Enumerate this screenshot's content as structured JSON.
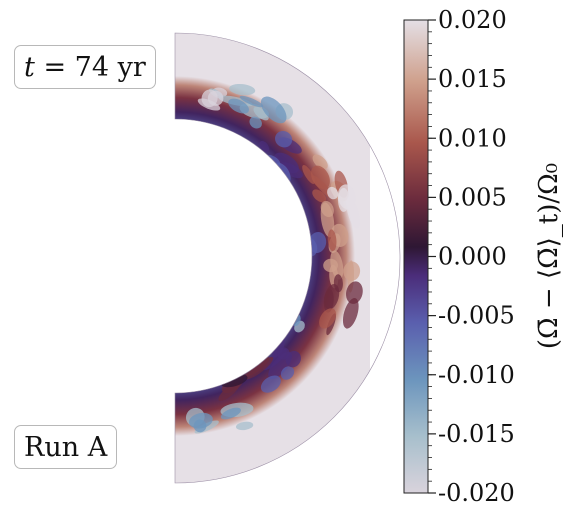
{
  "labels": {
    "time_prefix": "t",
    "time_text": " = 74 yr",
    "run": "Run A"
  },
  "chart_data": {
    "type": "heatmap",
    "projection": "meridional-slice-half-annulus",
    "title": "",
    "colorbar": {
      "label": "(Ω̄ − ⟨Ω̄⟩_t)/Ω₀",
      "min": -0.02,
      "max": 0.02,
      "ticks": [
        -0.02,
        -0.015,
        -0.01,
        -0.005,
        0.0,
        0.005,
        0.01,
        0.015,
        0.02
      ],
      "tick_labels": [
        "-0.020",
        "-0.015",
        "-0.010",
        "-0.005",
        "0.000",
        "0.005",
        "0.010",
        "0.015",
        "0.020"
      ],
      "colormap": "twilight-like",
      "colors": [
        "#d9d3dc",
        "#a7bfcc",
        "#6c95bd",
        "#5a5fae",
        "#4b2d7a",
        "#2e1734",
        "#6b2b3d",
        "#a9574c",
        "#cfa08c",
        "#e4dfe5"
      ]
    },
    "field_description_sectors": [
      {
        "latitude_deg": 75,
        "depth": "outer",
        "value": -0.018
      },
      {
        "latitude_deg": 60,
        "depth": "outer",
        "value": -0.012
      },
      {
        "latitude_deg": 45,
        "depth": "middle",
        "value": -0.004
      },
      {
        "latitude_deg": 30,
        "depth": "outer",
        "value": 0.012
      },
      {
        "latitude_deg": 15,
        "depth": "outer",
        "value": 0.018
      },
      {
        "latitude_deg": 0,
        "depth": "outer",
        "value": 0.016
      },
      {
        "latitude_deg": 0,
        "depth": "inner",
        "value": -0.006
      },
      {
        "latitude_deg": -15,
        "depth": "outer",
        "value": 0.008
      },
      {
        "latitude_deg": -30,
        "depth": "inner",
        "value": -0.012
      },
      {
        "latitude_deg": -45,
        "depth": "middle",
        "value": -0.004
      },
      {
        "latitude_deg": -60,
        "depth": "inner",
        "value": 0.006
      },
      {
        "latitude_deg": -75,
        "depth": "outer",
        "value": -0.014
      }
    ]
  }
}
